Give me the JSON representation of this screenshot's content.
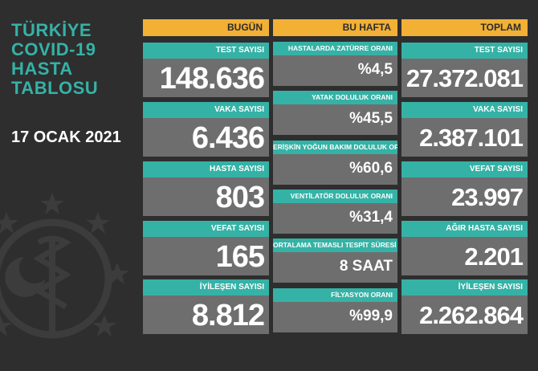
{
  "title_lines": [
    "TÜRKİYE",
    "COVID-19",
    "HASTA",
    "TABLOSU"
  ],
  "date": "17 OCAK 2021",
  "colors": {
    "background": "#2e2e2e",
    "teal": "#35b2a6",
    "header": "#f2b035",
    "card": "#6e6e6e"
  },
  "columns": {
    "today": {
      "header": "BUGÜN",
      "cards": [
        {
          "label": "TEST SAYISI",
          "value": "148.636"
        },
        {
          "label": "VAKA SAYISI",
          "value": "6.436"
        },
        {
          "label": "HASTA SAYISI",
          "value": "803"
        },
        {
          "label": "VEFAT SAYISI",
          "value": "165"
        },
        {
          "label": "İYİLEŞEN SAYISI",
          "value": "8.812"
        }
      ]
    },
    "this_week": {
      "header": "BU HAFTA",
      "cards": [
        {
          "label": "HASTALARDA ZATÜRRE ORANI",
          "value": "%4,5"
        },
        {
          "label": "YATAK DOLULUK ORANI",
          "value": "%45,5"
        },
        {
          "label": "ERİŞKİN YOĞUN BAKIM DOLULUK ORANI",
          "value": "%60,6"
        },
        {
          "label": "VENTİLATÖR DOLULUK ORANI",
          "value": "%31,4"
        },
        {
          "label": "ORTALAMA TEMASLI TESPİT SÜRESİ",
          "value": "8 SAAT"
        },
        {
          "label": "FİLYASYON ORANI",
          "value": "%99,9"
        }
      ]
    },
    "total": {
      "header": "TOPLAM",
      "cards": [
        {
          "label": "TEST SAYISI",
          "value": "27.372.081"
        },
        {
          "label": "VAKA SAYISI",
          "value": "2.387.101"
        },
        {
          "label": "VEFAT SAYISI",
          "value": "23.997"
        },
        {
          "label": "AĞIR HASTA SAYISI",
          "value": "2.201"
        },
        {
          "label": "İYİLEŞEN SAYISI",
          "value": "2.262.864"
        }
      ]
    }
  }
}
